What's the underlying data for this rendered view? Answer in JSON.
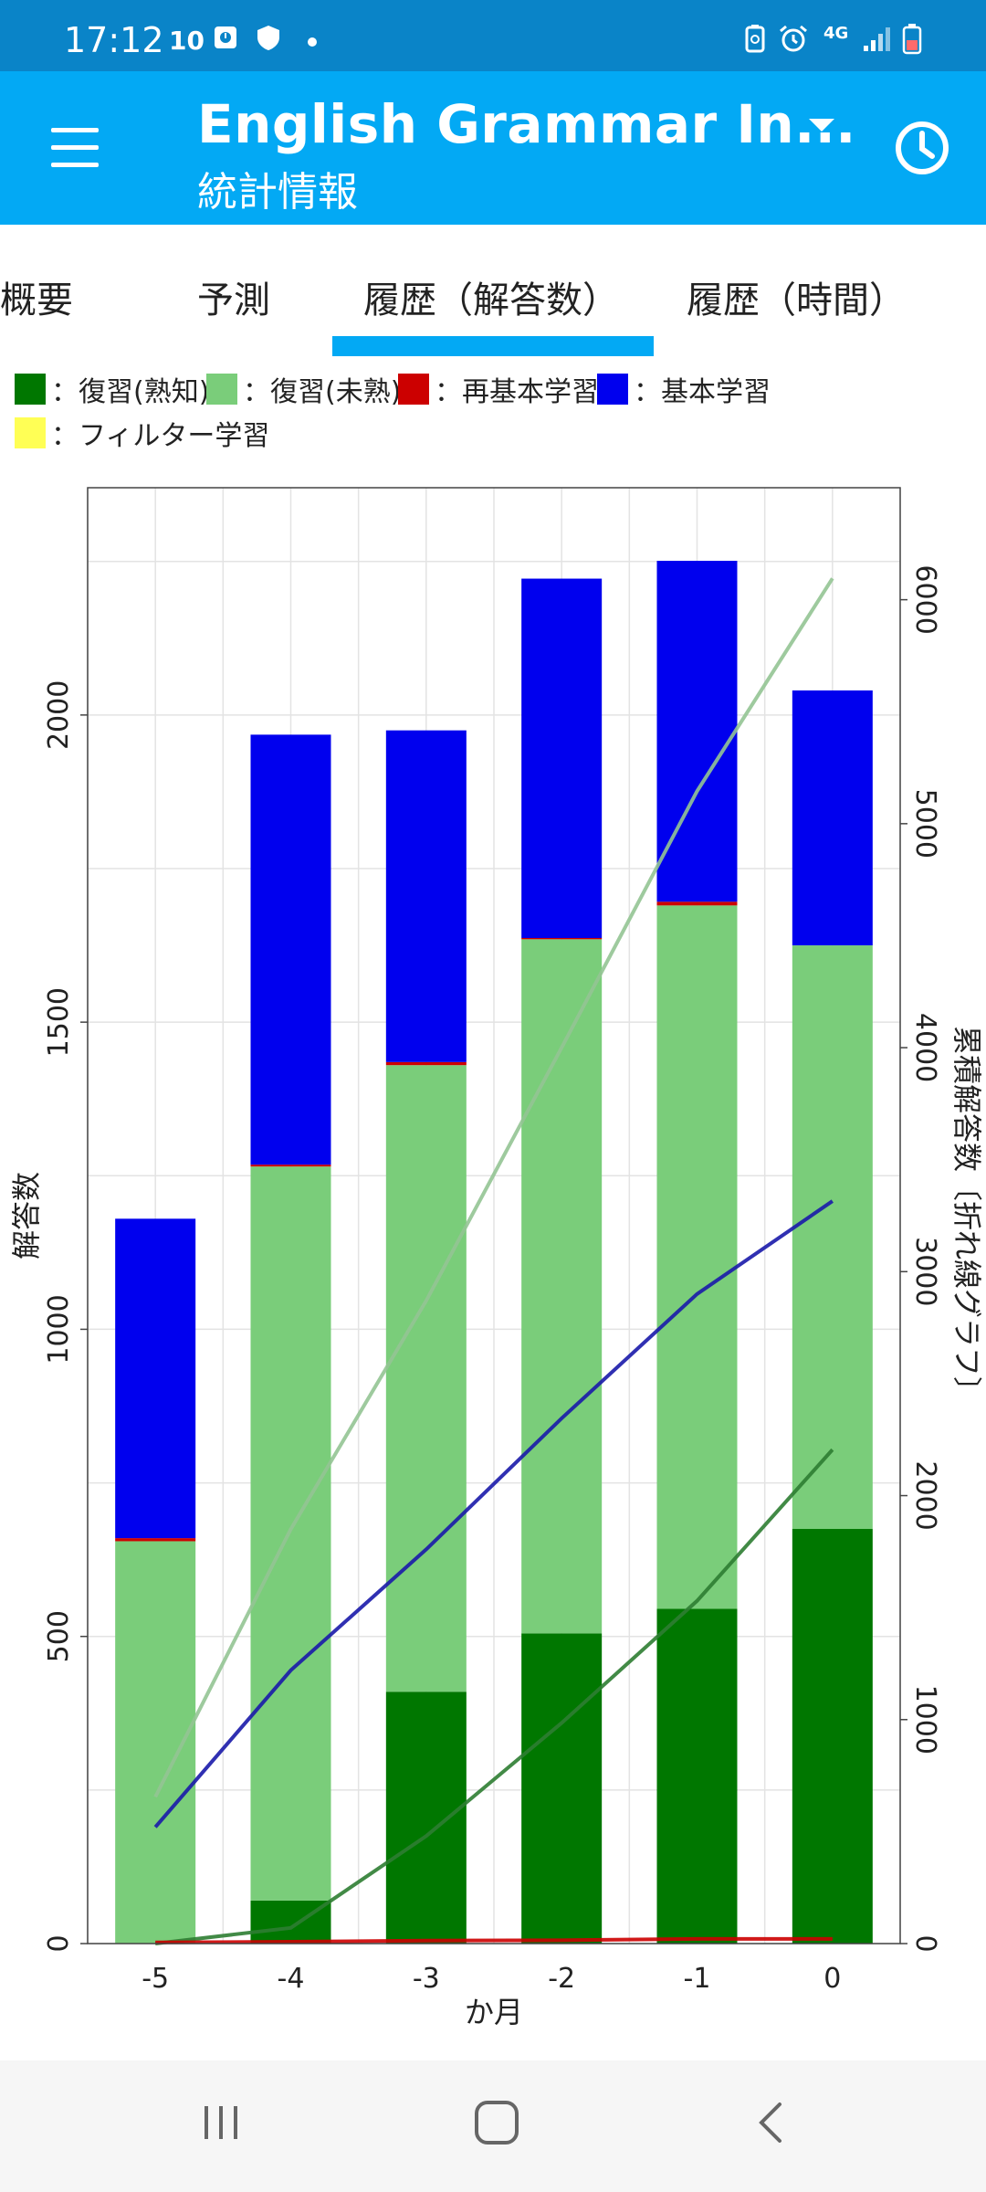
{
  "status_bar": {
    "time": "17:12",
    "badge": "10",
    "network": "4G"
  },
  "app_bar": {
    "title": "English Grammar In...",
    "subtitle": "統計情報",
    "menu_icon": "hamburger-menu-icon",
    "dropdown_icon": "caret-down-icon",
    "history_icon": "clock-icon"
  },
  "tabs": [
    {
      "label": "概要",
      "selected": false
    },
    {
      "label": "予測",
      "selected": false
    },
    {
      "label": "履歴（解答数）",
      "selected": true
    },
    {
      "label": "履歴（時間）",
      "selected": false
    }
  ],
  "legend": [
    {
      "label": "：復習(熟知)",
      "color": "#007700"
    },
    {
      "label": "：復習(未熟)",
      "color": "#7acd7a"
    },
    {
      "label": "：再基本学習",
      "color": "#cc0000"
    },
    {
      "label": "：基本学習",
      "color": "#0000ee"
    },
    {
      "label": "：フィルター学習",
      "color": "#ffff55"
    }
  ],
  "chart_data": {
    "type": "bar",
    "stacked": true,
    "xlabel": "か月",
    "ylabel": "解答数",
    "y2label": "累積解答数〔折れ線グラフ〕",
    "categories": [
      "-5",
      "-4",
      "-3",
      "-2",
      "-1",
      "0"
    ],
    "ylim": [
      0,
      2370
    ],
    "y2lim": [
      0,
      6500
    ],
    "yticks": [
      0,
      500,
      1000,
      1500,
      2000
    ],
    "y2ticks": [
      0,
      1000,
      2000,
      3000,
      4000,
      5000,
      6000
    ],
    "grid": true,
    "series": [
      {
        "name": "復習(熟知)",
        "color": "#007700",
        "values": [
          0,
          70,
          410,
          505,
          545,
          675
        ]
      },
      {
        "name": "復習(未熟)",
        "color": "#7acd7a",
        "values": [
          655,
          1195,
          1020,
          1130,
          1145,
          950
        ]
      },
      {
        "name": "再基本学習",
        "color": "#cc0000",
        "values": [
          5,
          3,
          5,
          2,
          6,
          0
        ]
      },
      {
        "name": "基本学習",
        "color": "#0000ee",
        "values": [
          520,
          700,
          540,
          585,
          555,
          415
        ]
      },
      {
        "name": "フィルター学習",
        "color": "#ffff55",
        "values": [
          0,
          0,
          0,
          0,
          0,
          0
        ]
      }
    ],
    "cumulative_lines": [
      {
        "name": "復習(熟知)",
        "color": "#2e7d32",
        "values": [
          0,
          70,
          480,
          985,
          1530,
          2205
        ]
      },
      {
        "name": "再基本学習",
        "color": "#cc0000",
        "values": [
          5,
          8,
          13,
          15,
          21,
          21
        ]
      },
      {
        "name": "基本学習",
        "color": "#1a1aaa",
        "values": [
          520,
          1220,
          1760,
          2345,
          2900,
          3315
        ]
      },
      {
        "name": "復習(未熟)",
        "color": "#93c493",
        "values": [
          655,
          1850,
          2870,
          4000,
          5145,
          6095
        ]
      }
    ]
  },
  "nav_bar": {
    "recent_icon": "recent-apps-icon",
    "home_icon": "home-icon",
    "back_icon": "back-icon"
  }
}
